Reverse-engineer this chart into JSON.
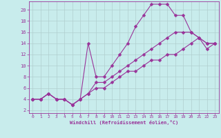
{
  "xlabel": "Windchill (Refroidissement éolien,°C)",
  "background_color": "#c8ecec",
  "grid_color": "#b0cece",
  "line_color": "#993399",
  "xlim": [
    -0.5,
    23.5
  ],
  "ylim": [
    1.5,
    21.5
  ],
  "xticks": [
    0,
    1,
    2,
    3,
    4,
    5,
    6,
    7,
    8,
    9,
    10,
    11,
    12,
    13,
    14,
    15,
    16,
    17,
    18,
    19,
    20,
    21,
    22,
    23
  ],
  "yticks": [
    2,
    4,
    6,
    8,
    10,
    12,
    14,
    16,
    18,
    20
  ],
  "curve1_x": [
    0,
    1,
    2,
    3,
    4,
    5,
    6,
    7,
    8,
    9,
    10,
    11,
    12,
    13,
    14,
    15,
    16,
    17,
    18,
    19,
    20,
    21,
    22,
    23
  ],
  "curve1_y": [
    4,
    4,
    5,
    4,
    4,
    3,
    4,
    14,
    8,
    8,
    10,
    12,
    14,
    17,
    19,
    21,
    21,
    21,
    19,
    19,
    16,
    15,
    14,
    14
  ],
  "curve2_x": [
    0,
    1,
    2,
    3,
    4,
    5,
    6,
    7,
    8,
    9,
    10,
    11,
    12,
    13,
    14,
    15,
    16,
    17,
    18,
    19,
    20,
    21,
    22,
    23
  ],
  "curve2_y": [
    4,
    4,
    5,
    4,
    4,
    3,
    4,
    5,
    6,
    6,
    7,
    8,
    9,
    9,
    10,
    11,
    11,
    12,
    12,
    13,
    14,
    15,
    13,
    14
  ],
  "curve3_x": [
    0,
    1,
    2,
    3,
    4,
    5,
    6,
    7,
    8,
    9,
    10,
    11,
    12,
    13,
    14,
    15,
    16,
    17,
    18,
    19,
    20,
    21,
    22,
    23
  ],
  "curve3_y": [
    4,
    4,
    5,
    4,
    4,
    3,
    4,
    5,
    7,
    7,
    8,
    9,
    10,
    11,
    12,
    13,
    14,
    15,
    16,
    16,
    16,
    15,
    14,
    14
  ]
}
